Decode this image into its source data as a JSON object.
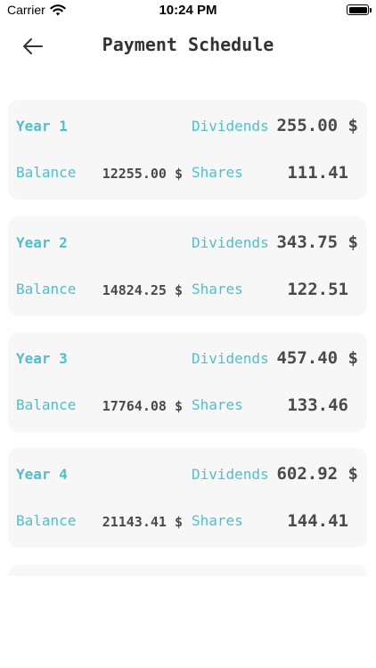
{
  "status_bar": {
    "carrier": "Carrier",
    "time": "10:24 PM",
    "icons": [
      "wifi-icon",
      "battery-icon"
    ]
  },
  "nav": {
    "title": "Payment Schedule",
    "back_icon": "arrow-left-icon"
  },
  "colors": {
    "accent": "#4fc0cb",
    "value_text": "#4a4a4a",
    "card_bg": "#f7f7f7",
    "title_text": "#333333"
  },
  "schedule": [
    {
      "year": "Year 1",
      "dividends_label": "Dividends",
      "dividends": "255.00 $",
      "balance_label": "Balance",
      "balance": "12255.00 $",
      "shares_label": "Shares",
      "shares": "111.41"
    },
    {
      "year": "Year 2",
      "dividends_label": "Dividends",
      "dividends": "343.75 $",
      "balance_label": "Balance",
      "balance": "14824.25 $",
      "shares_label": "Shares",
      "shares": "122.51"
    },
    {
      "year": "Year 3",
      "dividends_label": "Dividends",
      "dividends": "457.40 $",
      "balance_label": "Balance",
      "balance": "17764.08 $",
      "shares_label": "Shares",
      "shares": "133.46"
    },
    {
      "year": "Year 4",
      "dividends_label": "Dividends",
      "dividends": "602.92 $",
      "balance_label": "Balance",
      "balance": "21143.41 $",
      "shares_label": "Shares",
      "shares": "144.41"
    }
  ]
}
